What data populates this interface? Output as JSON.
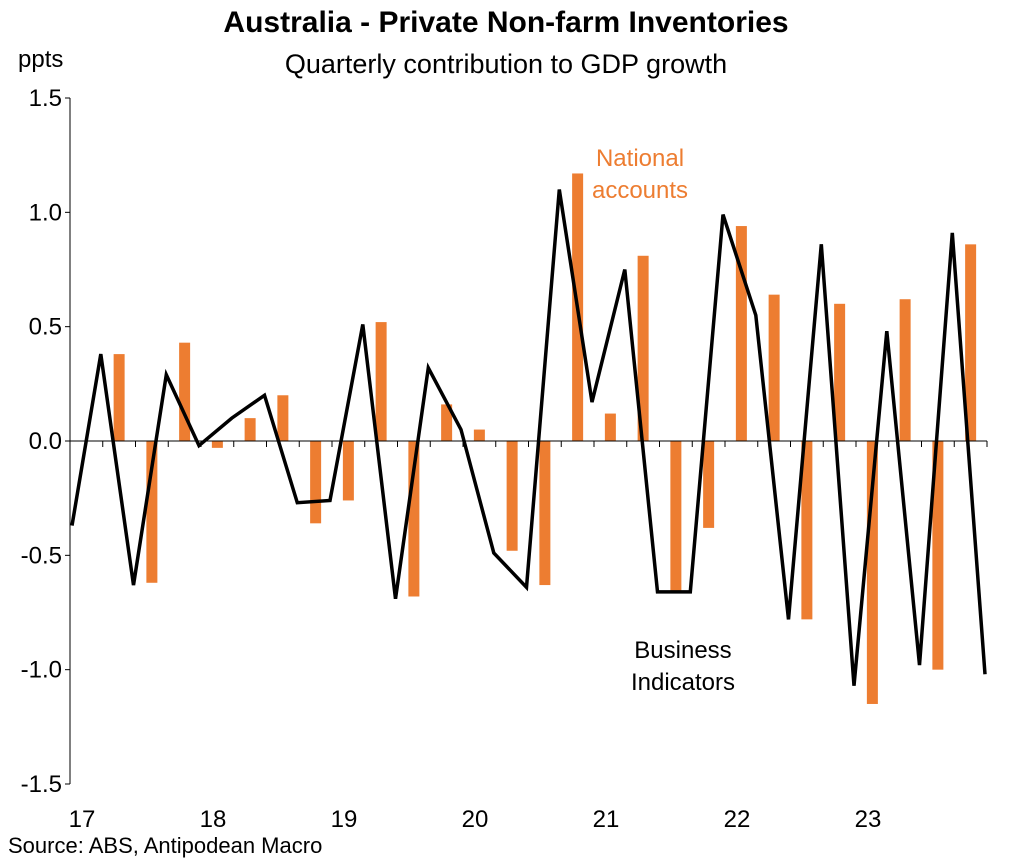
{
  "title": "Australia - Private Non-farm Inventories",
  "subtitle": "Quarterly contribution to GDP growth",
  "source": "Source: ABS, Antipodean Macro",
  "colors": {
    "national_accounts": "#ED7D31",
    "business_indicators": "#000000",
    "axis": "#000000"
  },
  "chart_data": {
    "type": "bar",
    "ylabel": "ppts",
    "xlabel": "",
    "ylim": [
      -1.5,
      1.5
    ],
    "yticks": [
      -1.5,
      -1.0,
      -0.5,
      0.0,
      0.5,
      1.0,
      1.5
    ],
    "ytick_labels": [
      "-1.5",
      "-1.0",
      "-0.5",
      "0.0",
      "0.5",
      "1.0",
      "1.5"
    ],
    "xtick_labels": [
      "17",
      "18",
      "19",
      "20",
      "21",
      "22",
      "23"
    ],
    "quarters": [
      "2017Q1",
      "2017Q2",
      "2017Q3",
      "2017Q4",
      "2018Q1",
      "2018Q2",
      "2018Q3",
      "2018Q4",
      "2019Q1",
      "2019Q2",
      "2019Q3",
      "2019Q4",
      "2020Q1",
      "2020Q2",
      "2020Q3",
      "2020Q4",
      "2021Q1",
      "2021Q2",
      "2021Q3",
      "2021Q4",
      "2022Q1",
      "2022Q2",
      "2022Q3",
      "2022Q4",
      "2023Q1",
      "2023Q2",
      "2023Q3",
      "2023Q4",
      "2024Q1"
    ],
    "series": [
      {
        "name": "National accounts",
        "type": "bar",
        "values": [
          null,
          0.38,
          -0.62,
          0.43,
          -0.03,
          0.1,
          0.2,
          -0.36,
          -0.26,
          0.52,
          -0.68,
          0.16,
          0.05,
          -0.48,
          -0.63,
          1.17,
          0.12,
          0.81,
          -0.66,
          -0.38,
          0.94,
          0.64,
          -0.78,
          0.6,
          -1.15,
          0.62,
          -1.0,
          0.86,
          null
        ]
      },
      {
        "name": "Business Indicators",
        "type": "line",
        "values": [
          -0.37,
          0.38,
          -0.63,
          0.29,
          -0.02,
          0.1,
          0.2,
          -0.27,
          -0.26,
          0.51,
          -0.69,
          0.32,
          0.05,
          -0.49,
          -0.64,
          1.1,
          0.17,
          0.75,
          -0.66,
          -0.66,
          0.99,
          0.55,
          -0.78,
          0.86,
          -1.07,
          0.48,
          -0.98,
          0.91,
          -1.02
        ]
      }
    ],
    "annotations": [
      {
        "lines": [
          "National",
          "accounts"
        ],
        "series": "National accounts"
      },
      {
        "lines": [
          "Business",
          "Indicators"
        ],
        "series": "Business Indicators"
      }
    ],
    "grid": false,
    "legend": "none"
  }
}
